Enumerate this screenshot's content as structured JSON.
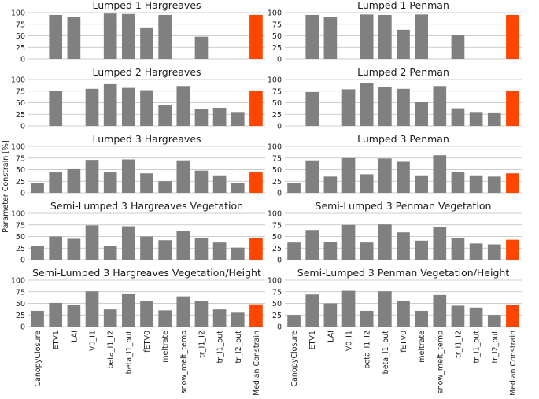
{
  "chart_data": {
    "type": "bar",
    "ylabel": "Parameter Constrain [%]",
    "ylim": [
      0,
      100
    ],
    "yticks": [
      0,
      25,
      50,
      75,
      100
    ],
    "grid": "horizontal",
    "categories": [
      "CanopyClosure",
      "ETV1",
      "LAI",
      "V0_I1",
      "beta_I1_I2",
      "beta_I1_out",
      "fETV0",
      "meltrate",
      "snow_melt_temp",
      "tr_I1_I2",
      "tr_I1_out",
      "tr_I2_out",
      "Median Constrain"
    ],
    "colors": {
      "bar": "#808080",
      "highlight": "#ff4500",
      "grid": "#bdbdbd"
    },
    "panels": [
      {
        "title": "Lumped 1 Hargreaves",
        "values": [
          null,
          95,
          91,
          null,
          98,
          97,
          68,
          95,
          null,
          48,
          null,
          null,
          95
        ]
      },
      {
        "title": "Lumped 1 Penman",
        "values": [
          null,
          95,
          90,
          null,
          96,
          95,
          63,
          96,
          null,
          51,
          null,
          null,
          95
        ]
      },
      {
        "title": "Lumped 2 Hargreaves",
        "values": [
          null,
          75,
          null,
          80,
          90,
          82,
          77,
          44,
          86,
          36,
          39,
          30,
          76
        ]
      },
      {
        "title": "Lumped 2 Penman",
        "values": [
          null,
          73,
          null,
          79,
          92,
          84,
          80,
          52,
          86,
          38,
          30,
          29,
          75
        ]
      },
      {
        "title": "Lumped 3 Hargreaves",
        "values": [
          22,
          44,
          51,
          71,
          44,
          72,
          42,
          25,
          70,
          48,
          36,
          22,
          44
        ]
      },
      {
        "title": "Lumped 3 Penman",
        "values": [
          22,
          70,
          35,
          75,
          40,
          74,
          67,
          36,
          81,
          45,
          36,
          35,
          42
        ]
      },
      {
        "title": "Semi-Lumped 3 Hargreaves Vegetation",
        "values": [
          30,
          50,
          45,
          74,
          30,
          72,
          50,
          42,
          62,
          46,
          37,
          26,
          46
        ]
      },
      {
        "title": "Semi-Lumped 3 Penman Vegetation",
        "values": [
          37,
          64,
          38,
          75,
          37,
          76,
          59,
          41,
          70,
          46,
          35,
          33,
          43
        ]
      },
      {
        "title": "Semi-Lumped 3 Hargreaves Vegetation/Height",
        "values": [
          34,
          51,
          46,
          76,
          37,
          71,
          55,
          35,
          65,
          55,
          37,
          30,
          48
        ]
      },
      {
        "title": "Semi-Lumped 3 Penman Vegetation/Height",
        "values": [
          25,
          69,
          50,
          77,
          34,
          76,
          56,
          34,
          68,
          45,
          41,
          25,
          46
        ]
      }
    ]
  }
}
